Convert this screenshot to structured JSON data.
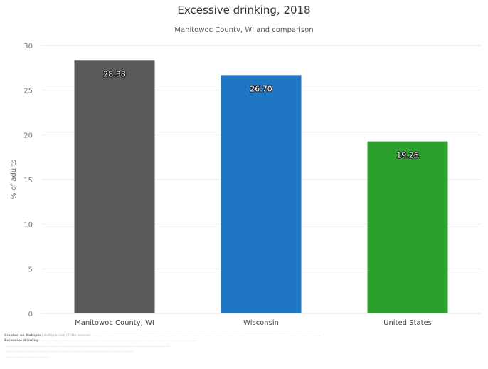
{
  "chart_data": {
    "type": "bar",
    "title": "Excessive drinking, 2018",
    "subtitle": "Manitowoc County, WI and comparison",
    "ylabel": "% of adults",
    "xlabel": "",
    "ylim": [
      0,
      30
    ],
    "yticks": [
      0,
      5,
      10,
      15,
      20,
      25,
      30
    ],
    "grid": true,
    "categories": [
      "Manitowoc County, WI",
      "Wisconsin",
      "United States"
    ],
    "values": [
      28.38,
      26.7,
      19.26
    ],
    "value_labels": [
      "28.38",
      "26.70",
      "19.26"
    ],
    "colors": [
      "#5a5a5a",
      "#1f77c4",
      "#2ca02c"
    ]
  },
  "footer": {
    "lines": [
      {
        "label": "Created on Metopio",
        "text": " | metopio.com | Data sources: ............................................................................................................................................................................................................................"
      },
      {
        "label": "Excessive drinking",
        "text": ": ......................................................................................................................................................."
      },
      {
        "label": "",
        "text": "..............................................................................................................................................................."
      },
      {
        "label": "",
        "text": "............................................................................................................................"
      },
      {
        "label": "",
        "text": "..........................................."
      }
    ]
  }
}
